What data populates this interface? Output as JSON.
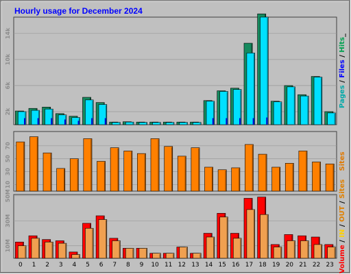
{
  "chart_data": {
    "type": "bar",
    "title": "Hourly usage for December 2024",
    "categories": [
      "0",
      "1",
      "2",
      "3",
      "4",
      "5",
      "6",
      "7",
      "8",
      "9",
      "10",
      "11",
      "12",
      "13",
      "14",
      "15",
      "16",
      "17",
      "18",
      "19",
      "20",
      "21",
      "22",
      "23"
    ],
    "panels": [
      {
        "name": "pages-files-hits",
        "ylim": [
          0,
          16500
        ],
        "yticks": [
          2000,
          6000,
          10000,
          14000
        ],
        "ytick_labels": [
          "2k",
          "6k",
          "10k",
          "14k"
        ],
        "legend": [
          {
            "text": "Pages",
            "color": "#00a8a8"
          },
          {
            "text": " / ",
            "color": "#000000"
          },
          {
            "text": "Files",
            "color": "#0000ff"
          },
          {
            "text": " / ",
            "color": "#000000"
          },
          {
            "text": "Hits",
            "color": "#00a050"
          },
          {
            "text": "_",
            "color": "#000000"
          }
        ],
        "series": [
          {
            "name": "Hits",
            "color": "#158a5e",
            "values": [
              2100,
              2500,
              2700,
              1700,
              1300,
              4200,
              3400,
              400,
              450,
              400,
              400,
              400,
              400,
              400,
              3700,
              5200,
              5600,
              12500,
              17000,
              3600,
              6000,
              4600,
              7400,
              2000
            ]
          },
          {
            "name": "Files",
            "color": "#00e0ff",
            "values": [
              2000,
              2200,
              2400,
              1500,
              1100,
              3800,
              3100,
              350,
              400,
              350,
              350,
              350,
              350,
              350,
              3600,
              5100,
              5400,
              11000,
              16500,
              3500,
              5800,
              4400,
              7300,
              1800
            ]
          },
          {
            "name": "Pages",
            "color": "#00c8f0",
            "values": [
              1000,
              1000,
              1000,
              800,
              600,
              1000,
              1000,
              0,
              0,
              0,
              0,
              0,
              0,
              0,
              1000,
              1000,
              1000,
              1000,
              1100,
              0,
              0,
              0,
              0,
              0
            ]
          }
        ]
      },
      {
        "name": "sites",
        "ylim": [
          0,
          92
        ],
        "yticks": [
          10,
          30,
          50,
          70
        ],
        "ytick_labels": [
          "10",
          "30",
          "50",
          "70"
        ],
        "legend": [
          {
            "text": "Sites",
            "color": "#e07800"
          }
        ],
        "series": [
          {
            "name": "Sites",
            "color": "#ff8000",
            "values": [
              76,
              84,
              59,
              35,
              50,
              81,
              46,
              67,
              62,
              58,
              81,
              69,
              54,
              67,
              37,
              33,
              36,
              72,
              57,
              37,
              43,
              62,
              45,
              42
            ]
          }
        ]
      },
      {
        "name": "volume",
        "ylim": [
          0,
          51
        ],
        "yticks": [
          10,
          30,
          50
        ],
        "ytick_labels": [
          "10M",
          "30M",
          "50M"
        ],
        "legend": [
          {
            "text": "Volume",
            "color": "#ff0000"
          },
          {
            "text": " / ",
            "color": "#000000"
          },
          {
            "text": "IN",
            "color": "#ffd000"
          },
          {
            "text": " / ",
            "color": "#000000"
          },
          {
            "text": "OUT",
            "color": "#e08000"
          },
          {
            "text": " / ",
            "color": "#000000"
          },
          {
            "text": "Sites",
            "color": "#e08000"
          }
        ],
        "series": [
          {
            "name": "Volume",
            "color": "#ff0000",
            "values": [
              13,
              18,
              15,
              14,
              5,
              28,
              34,
              16,
              8,
              8,
              4,
              4,
              9,
              4,
              20,
              36,
              20,
              48,
              49,
              11,
              19,
              18,
              17,
              11
            ]
          },
          {
            "name": "OUT",
            "color": "#f0a050",
            "values": [
              10,
              16,
              13,
              12,
              3,
              24,
              31,
              14,
              8,
              8,
              4,
              4,
              9,
              4,
              17,
              33,
              16,
              39,
              35,
              9,
              14,
              14,
              11,
              9
            ]
          }
        ]
      }
    ]
  }
}
